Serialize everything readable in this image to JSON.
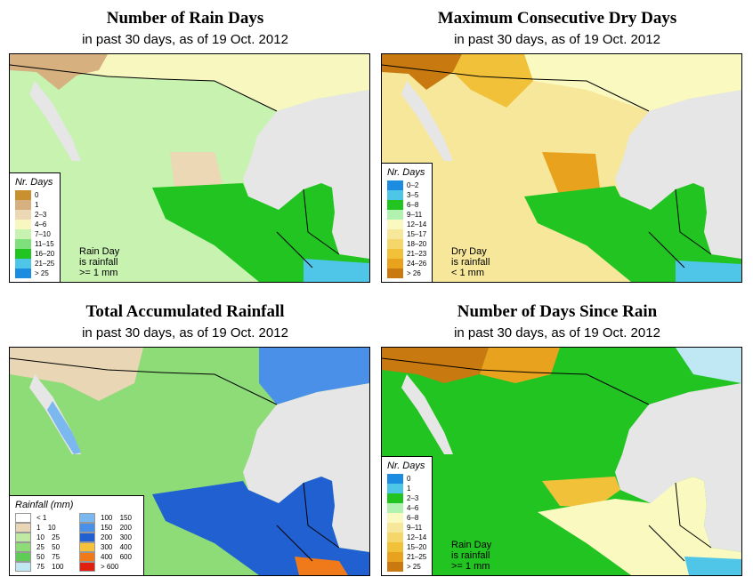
{
  "panels": [
    {
      "title": "Number of Rain Days",
      "subtitle": "in past 30 days, as of  19 Oct. 2012",
      "legend_title": "Nr. Days",
      "legend": [
        {
          "label": "0",
          "color": "#c8902e"
        },
        {
          "label": "1",
          "color": "#d6b07e"
        },
        {
          "label": "2–3",
          "color": "#ecd8b4"
        },
        {
          "label": "4–6",
          "color": "#f7f7bf"
        },
        {
          "label": "7–10",
          "color": "#c7f2b0"
        },
        {
          "label": "11–15",
          "color": "#7ee07b"
        },
        {
          "label": "16–20",
          "color": "#22c422"
        },
        {
          "label": "21–25",
          "color": "#4fc6e8"
        },
        {
          "label": "> 25",
          "color": "#1c8ce0"
        }
      ],
      "note": [
        "Rain Day",
        "is rainfall",
        ">= 1 mm"
      ]
    },
    {
      "title": "Maximum Consecutive Dry Days",
      "subtitle": "in past 30 days, as of  19 Oct. 2012",
      "legend_title": "Nr. Days",
      "legend": [
        {
          "label": "0–2",
          "color": "#1c8ce0"
        },
        {
          "label": "3–5",
          "color": "#4fc6e8"
        },
        {
          "label": "6–8",
          "color": "#22c422"
        },
        {
          "label": "9–11",
          "color": "#b2f2b0"
        },
        {
          "label": "12–14",
          "color": "#fafac0"
        },
        {
          "label": "15–17",
          "color": "#f7e79a"
        },
        {
          "label": "18–20",
          "color": "#f5d66a"
        },
        {
          "label": "21–23",
          "color": "#f2c13a"
        },
        {
          "label": "24–26",
          "color": "#e8a21e"
        },
        {
          "label": "> 26",
          "color": "#c87a10"
        }
      ],
      "note": [
        "Dry Day",
        "is rainfall",
        "< 1 mm"
      ]
    },
    {
      "title": "Total Accumulated Rainfall",
      "subtitle": "in past 30 days, as of  19 Oct. 2012",
      "legend_title": "Rainfall (mm)",
      "legend_left": [
        {
          "low": "< 1",
          "high": "",
          "color": "#ffffff"
        },
        {
          "low": "1",
          "high": "10",
          "color": "#e8d6b4"
        },
        {
          "low": "10",
          "high": "25",
          "color": "#bfeaa4"
        },
        {
          "low": "25",
          "high": "50",
          "color": "#8edc78"
        },
        {
          "low": "50",
          "high": "75",
          "color": "#5ecc56"
        },
        {
          "low": "75",
          "high": "100",
          "color": "#bfe8f4"
        }
      ],
      "legend_right": [
        {
          "low": "100",
          "high": "150",
          "color": "#7cb8f0"
        },
        {
          "low": "150",
          "high": "200",
          "color": "#4a90e8"
        },
        {
          "low": "200",
          "high": "300",
          "color": "#2060d0"
        },
        {
          "low": "300",
          "high": "400",
          "color": "#f5c23a"
        },
        {
          "low": "400",
          "high": "600",
          "color": "#f07a1a"
        },
        {
          "low": "> 600",
          "high": "",
          "color": "#e02010"
        }
      ]
    },
    {
      "title": "Number of Days Since Rain",
      "subtitle": "in past 30 days, as of  19 Oct. 2012",
      "legend_title": "Nr. Days",
      "legend": [
        {
          "label": "0",
          "color": "#1c8ce0"
        },
        {
          "label": "1",
          "color": "#4fc6e8"
        },
        {
          "label": "2–3",
          "color": "#22c422"
        },
        {
          "label": "4–6",
          "color": "#b2f2b0"
        },
        {
          "label": "6–8",
          "color": "#fafac0"
        },
        {
          "label": "9–11",
          "color": "#f7e79a"
        },
        {
          "label": "12–14",
          "color": "#f5d66a"
        },
        {
          "label": "15–20",
          "color": "#f2c13a"
        },
        {
          "label": "21–25",
          "color": "#e8a21e"
        },
        {
          "label": "> 25",
          "color": "#c87a10"
        }
      ],
      "note": [
        "Rain Day",
        "is rainfall",
        ">= 1 mm"
      ]
    }
  ],
  "colors": {
    "ocean": "#e6e6e6",
    "border": "#000000"
  }
}
